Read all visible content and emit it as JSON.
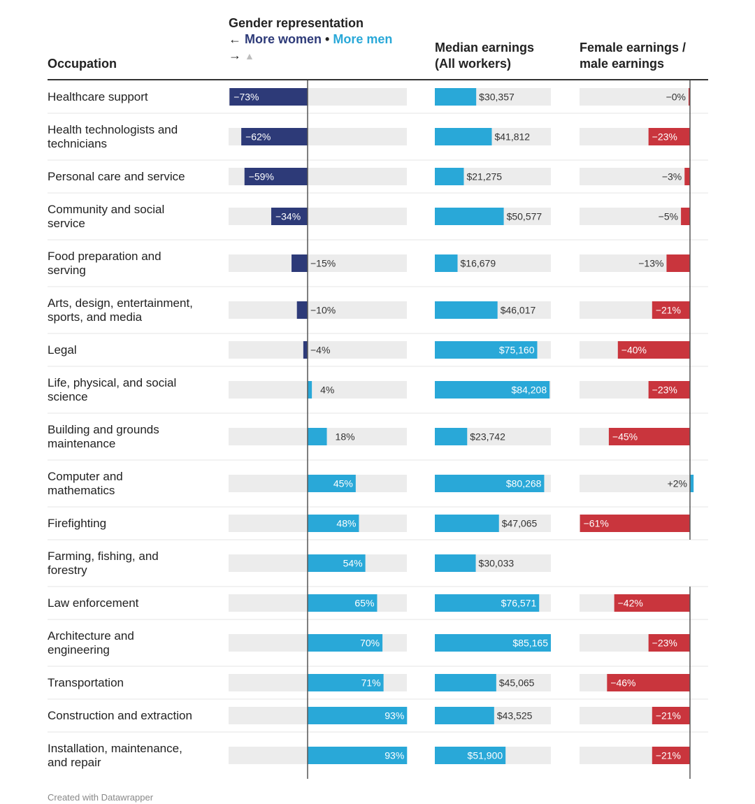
{
  "header": {
    "occupation": "Occupation",
    "gender_title": "Gender representation",
    "gender_women": "More women",
    "gender_sep": " • ",
    "gender_men": "More men",
    "gender_left_arrow": "←",
    "gender_right_arrow": "→",
    "gender_up_arrow": "▲",
    "median_line1": "Median earnings",
    "median_line2": "(All workers)",
    "ratio_line1": "Female earnings /",
    "ratio_line2": "male earnings"
  },
  "footer": "Created with Datawrapper",
  "colors": {
    "women": "#2d3a78",
    "men": "#29a8d8",
    "earnings": "#29a8d8",
    "gap_negative": "#c9353d",
    "gap_positive": "#29a8d8",
    "track": "#ececec",
    "axis": "#555555"
  },
  "chart_data": {
    "type": "table",
    "columns": [
      "Occupation",
      "Gender representation",
      "Median earnings (All workers)",
      "Female earnings / male earnings"
    ],
    "rows": [
      {
        "occupation": [
          "Healthcare support"
        ],
        "gender": -73,
        "gender_label": "−73%",
        "earnings": 30357,
        "earnings_label": "$30,357",
        "ratio": -0.3,
        "ratio_label": "−0%"
      },
      {
        "occupation": [
          "Health technologists and",
          "technicians"
        ],
        "gender": -62,
        "gender_label": "−62%",
        "earnings": 41812,
        "earnings_label": "$41,812",
        "ratio": -23,
        "ratio_label": "−23%"
      },
      {
        "occupation": [
          "Personal care and service"
        ],
        "gender": -59,
        "gender_label": "−59%",
        "earnings": 21275,
        "earnings_label": "$21,275",
        "ratio": -3,
        "ratio_label": "−3%"
      },
      {
        "occupation": [
          "Community and social",
          "service"
        ],
        "gender": -34,
        "gender_label": "−34%",
        "earnings": 50577,
        "earnings_label": "$50,577",
        "ratio": -5,
        "ratio_label": "−5%"
      },
      {
        "occupation": [
          "Food preparation and",
          "serving"
        ],
        "gender": -15,
        "gender_label": "−15%",
        "earnings": 16679,
        "earnings_label": "$16,679",
        "ratio": -13,
        "ratio_label": "−13%"
      },
      {
        "occupation": [
          "Arts, design, entertainment,",
          "sports, and media"
        ],
        "gender": -10,
        "gender_label": "−10%",
        "earnings": 46017,
        "earnings_label": "$46,017",
        "ratio": -21,
        "ratio_label": "−21%"
      },
      {
        "occupation": [
          "Legal"
        ],
        "gender": -4,
        "gender_label": "−4%",
        "earnings": 75160,
        "earnings_label": "$75,160",
        "ratio": -40,
        "ratio_label": "−40%"
      },
      {
        "occupation": [
          "Life, physical, and social",
          "science"
        ],
        "gender": 4,
        "gender_label": "4%",
        "earnings": 84208,
        "earnings_label": "$84,208",
        "ratio": -23,
        "ratio_label": "−23%"
      },
      {
        "occupation": [
          "Building and grounds",
          "maintenance"
        ],
        "gender": 18,
        "gender_label": "18%",
        "earnings": 23742,
        "earnings_label": "$23,742",
        "ratio": -45,
        "ratio_label": "−45%"
      },
      {
        "occupation": [
          "Computer and",
          "mathematics"
        ],
        "gender": 45,
        "gender_label": "45%",
        "earnings": 80268,
        "earnings_label": "$80,268",
        "ratio": 2,
        "ratio_label": "+2%"
      },
      {
        "occupation": [
          "Firefighting"
        ],
        "gender": 48,
        "gender_label": "48%",
        "earnings": 47065,
        "earnings_label": "$47,065",
        "ratio": -61,
        "ratio_label": "−61%"
      },
      {
        "occupation": [
          "Farming, fishing, and",
          "forestry"
        ],
        "gender": 54,
        "gender_label": "54%",
        "earnings": 30033,
        "earnings_label": "$30,033",
        "ratio": null,
        "ratio_label": ""
      },
      {
        "occupation": [
          "Law enforcement"
        ],
        "gender": 65,
        "gender_label": "65%",
        "earnings": 76571,
        "earnings_label": "$76,571",
        "ratio": -42,
        "ratio_label": "−42%"
      },
      {
        "occupation": [
          "Architecture and",
          "engineering"
        ],
        "gender": 70,
        "gender_label": "70%",
        "earnings": 85165,
        "earnings_label": "$85,165",
        "ratio": -23,
        "ratio_label": "−23%"
      },
      {
        "occupation": [
          "Transportation"
        ],
        "gender": 71,
        "gender_label": "71%",
        "earnings": 45065,
        "earnings_label": "$45,065",
        "ratio": -46,
        "ratio_label": "−46%"
      },
      {
        "occupation": [
          "Construction and extraction"
        ],
        "gender": 93,
        "gender_label": "93%",
        "earnings": 43525,
        "earnings_label": "$43,525",
        "ratio": -21,
        "ratio_label": "−21%"
      },
      {
        "occupation": [
          "Installation, maintenance,",
          "and repair"
        ],
        "gender": 93,
        "gender_label": "93%",
        "earnings": 51900,
        "earnings_label": "$51,900",
        "ratio": -21,
        "ratio_label": "−21%"
      }
    ]
  }
}
